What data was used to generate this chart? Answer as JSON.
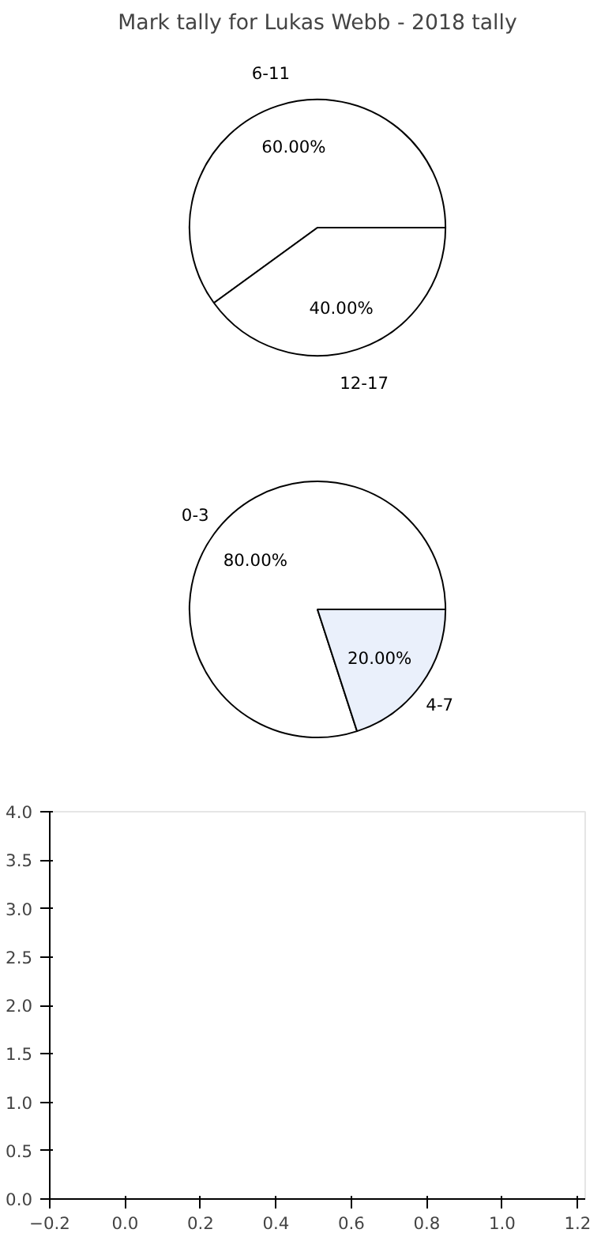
{
  "chart_data": [
    {
      "type": "pie",
      "title": "Mark tally for Lukas Webb - 2018 tally",
      "categories": [
        "6-11",
        "12-17"
      ],
      "values": [
        60,
        40
      ],
      "value_labels": [
        "60.00%",
        "40.00%"
      ],
      "colors": [
        "#ffffff",
        "#ffffff"
      ]
    },
    {
      "type": "pie",
      "categories": [
        "0-3",
        "4-7"
      ],
      "values": [
        80,
        20
      ],
      "value_labels": [
        "80.00%",
        "20.00%"
      ],
      "colors": [
        "#ffffff",
        "#eaf0fb"
      ]
    },
    {
      "type": "scatter",
      "xlim": [
        -0.2,
        1.22
      ],
      "ylim": [
        0,
        4
      ],
      "xticks": [
        {
          "value": -0.2,
          "label": "−0.2"
        },
        {
          "value": 0,
          "label": "0.0"
        },
        {
          "value": 0.2,
          "label": "0.2"
        },
        {
          "value": 0.4,
          "label": "0.4"
        },
        {
          "value": 0.6,
          "label": "0.6"
        },
        {
          "value": 0.8,
          "label": "0.8"
        },
        {
          "value": 1.0,
          "label": "1.0"
        },
        {
          "value": 1.2,
          "label": "1.2"
        }
      ],
      "yticks": [
        {
          "value": 0,
          "label": "0.0"
        },
        {
          "value": 0.5,
          "label": "0.5"
        },
        {
          "value": 1,
          "label": "1.0"
        },
        {
          "value": 1.5,
          "label": "1.5"
        },
        {
          "value": 2,
          "label": "2.0"
        },
        {
          "value": 2.5,
          "label": "2.5"
        },
        {
          "value": 3,
          "label": "3.0"
        },
        {
          "value": 3.5,
          "label": "3.5"
        },
        {
          "value": 4,
          "label": "4.0"
        }
      ]
    }
  ]
}
